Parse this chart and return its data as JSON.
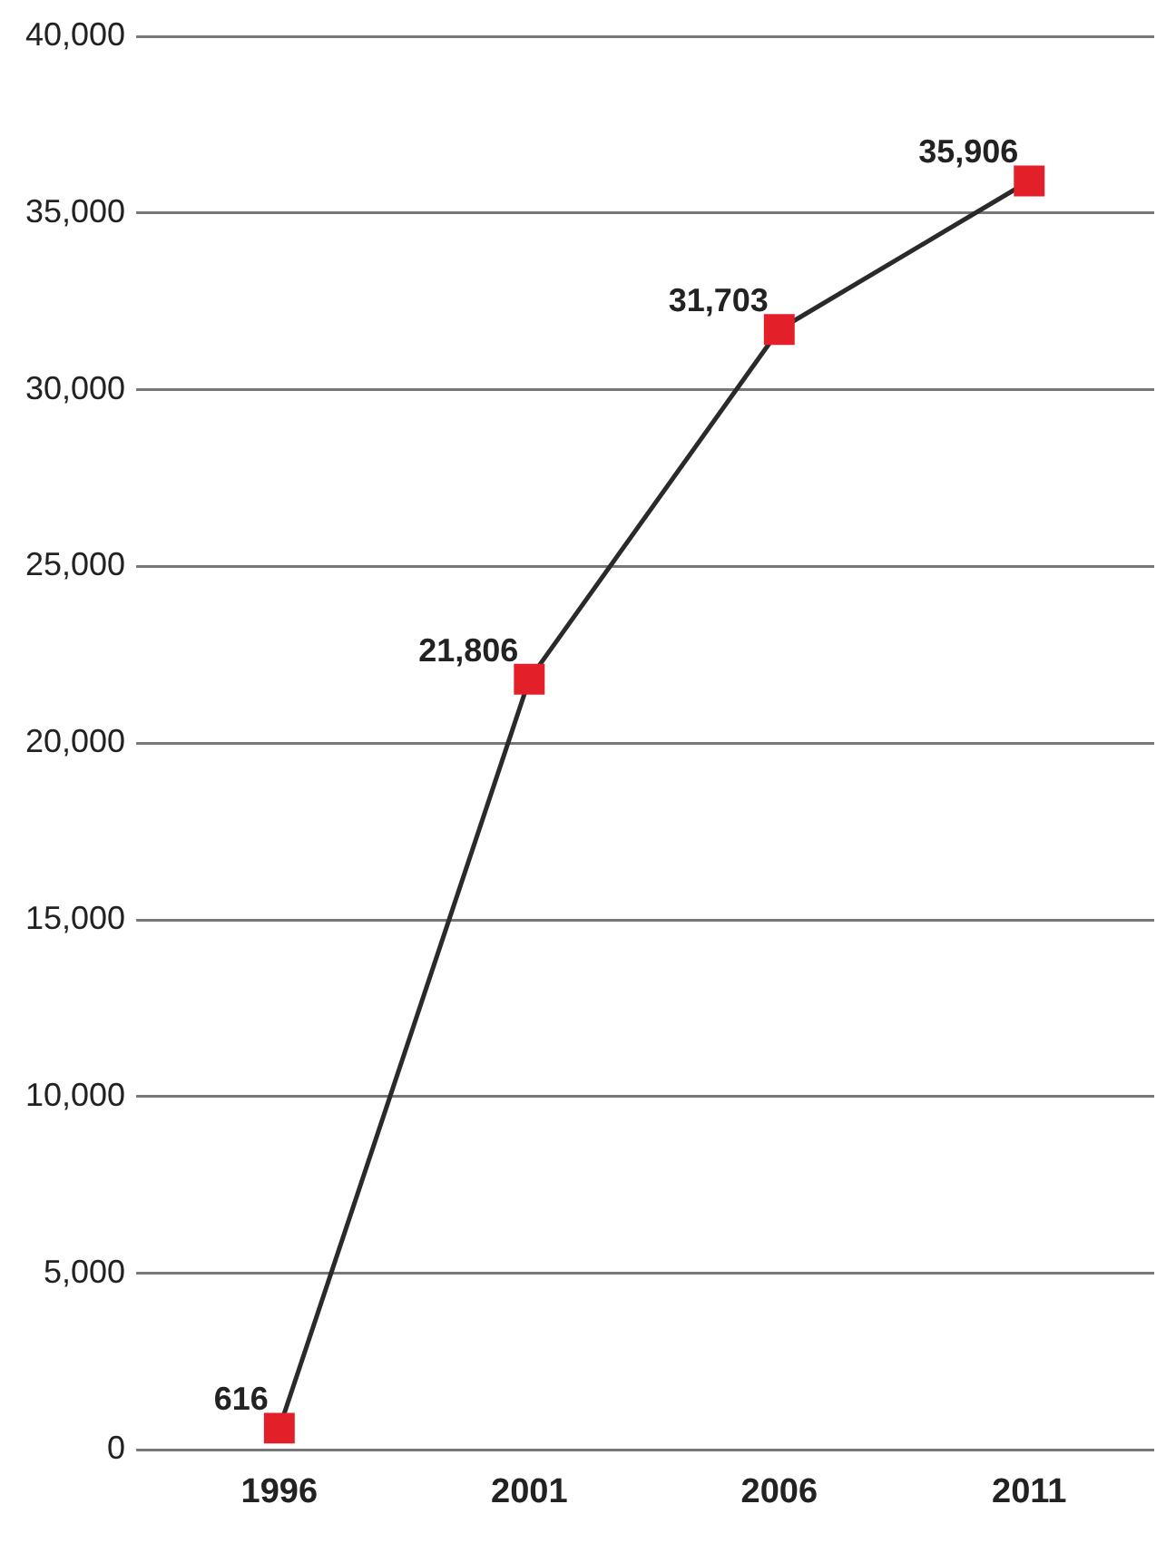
{
  "chart_data": {
    "type": "line",
    "categories": [
      "1996",
      "2001",
      "2006",
      "2011"
    ],
    "series": [
      {
        "color": "#e3202a",
        "values": [
          616,
          21806,
          31703,
          35906
        ],
        "value_labels": [
          "616",
          "21,806",
          "31,703",
          "35,906"
        ]
      }
    ],
    "ylim": [
      0,
      40000
    ],
    "yticks": [
      0,
      {
        "value": 5000,
        "label": "5,000"
      },
      {
        "value": 10000,
        "label": "10,000"
      },
      {
        "value": 15000,
        "label": "15,000"
      },
      {
        "value": 20000,
        "label": "20,000"
      },
      {
        "value": 25000,
        "label": "25,000"
      },
      {
        "value": 30000,
        "label": "30,000"
      },
      {
        "value": 35000,
        "label": "35,000"
      },
      {
        "value": 40000,
        "label": "40,000"
      }
    ],
    "grid": "y",
    "marker": "square",
    "line_style": "solid"
  }
}
